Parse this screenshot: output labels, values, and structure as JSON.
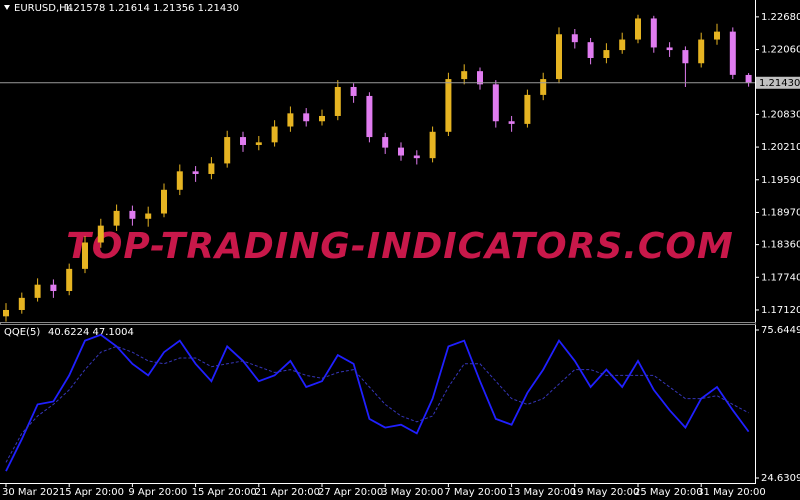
{
  "chart_data": [
    {
      "type": "candlestick",
      "title": "EURUSD,H4",
      "quote": "1.21578 1.21614 1.21356 1.21430",
      "annotation": "TOP-TRADING-INDICATORS.COM",
      "up_color": "#e6b422",
      "down_color": "#e07cf0",
      "open": [
        1.17,
        1.1712,
        1.1735,
        1.176,
        1.1748,
        1.179,
        1.184,
        1.1872,
        1.19,
        1.1885,
        1.1895,
        1.194,
        1.1975,
        1.197,
        1.199,
        1.204,
        1.2025,
        1.203,
        1.206,
        1.2085,
        1.207,
        1.208,
        1.2135,
        1.2118,
        1.204,
        1.202,
        1.2005,
        1.2,
        1.205,
        1.215,
        1.2165,
        1.214,
        1.207,
        1.2065,
        1.212,
        1.215,
        1.2235,
        1.222,
        1.219,
        1.2205,
        1.2225,
        1.2265,
        1.221,
        1.2205,
        1.218,
        1.2225,
        1.224,
        1.21578
      ],
      "high": [
        1.1725,
        1.1745,
        1.1772,
        1.177,
        1.18,
        1.1852,
        1.1885,
        1.1912,
        1.191,
        1.1908,
        1.1952,
        1.1988,
        1.1985,
        1.2002,
        1.2052,
        1.205,
        1.2042,
        1.2072,
        1.2098,
        1.2095,
        1.2092,
        1.2148,
        1.2142,
        1.2125,
        1.2048,
        1.203,
        1.2015,
        1.206,
        1.2162,
        1.2178,
        1.2172,
        1.2148,
        1.208,
        1.213,
        1.2162,
        1.2248,
        1.2245,
        1.2228,
        1.2218,
        1.2238,
        1.2272,
        1.227,
        1.222,
        1.2212,
        1.2238,
        1.2255,
        1.2248,
        1.21614
      ],
      "low": [
        1.169,
        1.1705,
        1.1728,
        1.1735,
        1.174,
        1.1782,
        1.183,
        1.1862,
        1.1872,
        1.187,
        1.1888,
        1.193,
        1.1955,
        1.196,
        1.1982,
        1.2012,
        1.2015,
        1.2022,
        1.205,
        1.206,
        1.2062,
        1.2072,
        1.2105,
        1.203,
        1.2008,
        1.1995,
        1.1988,
        1.1992,
        1.2042,
        1.214,
        1.213,
        1.2058,
        1.205,
        1.2058,
        1.211,
        1.2142,
        1.2208,
        1.2178,
        1.218,
        1.2198,
        1.2218,
        1.22,
        1.2192,
        1.2135,
        1.2172,
        1.2215,
        1.215,
        1.21356
      ],
      "close": [
        1.1712,
        1.1735,
        1.176,
        1.1748,
        1.179,
        1.184,
        1.1872,
        1.19,
        1.1885,
        1.1895,
        1.194,
        1.1975,
        1.197,
        1.199,
        1.204,
        1.2025,
        1.203,
        1.206,
        1.2085,
        1.207,
        1.208,
        1.2135,
        1.2118,
        1.204,
        1.202,
        1.2005,
        1.2,
        1.205,
        1.215,
        1.2165,
        1.214,
        1.207,
        1.2065,
        1.212,
        1.215,
        1.2235,
        1.222,
        1.219,
        1.2205,
        1.2225,
        1.2265,
        1.221,
        1.2205,
        1.218,
        1.2225,
        1.224,
        1.2158,
        1.2143
      ],
      "current_price": {
        "value": 1.2143,
        "label": "1.21430"
      },
      "ylim": [
        1.1693,
        1.23
      ],
      "yticks": [
        {
          "value": 1.2268,
          "label": "1.22680"
        },
        {
          "value": 1.2206,
          "label": "1.22060"
        },
        {
          "value": 1.2083,
          "label": "1.20830"
        },
        {
          "value": 1.2021,
          "label": "1.20210"
        },
        {
          "value": 1.1959,
          "label": "1.19590"
        },
        {
          "value": 1.1897,
          "label": "1.18970"
        },
        {
          "value": 1.1836,
          "label": "1.18360"
        },
        {
          "value": 1.1774,
          "label": "1.17740"
        },
        {
          "value": 1.1712,
          "label": "1.17120"
        }
      ]
    },
    {
      "type": "line",
      "title": "QQE(5)",
      "quote": "40.6224 47.1004",
      "categories": [
        "30 Mar 2021",
        null,
        null,
        null,
        "5 Apr 20:00",
        null,
        null,
        null,
        "9 Apr 20:00",
        null,
        null,
        null,
        "15 Apr 20:00",
        null,
        null,
        null,
        "21 Apr 20:00",
        null,
        null,
        null,
        "27 Apr 20:00",
        null,
        null,
        null,
        "3 May 20:00",
        null,
        null,
        null,
        "7 May 20:00",
        null,
        null,
        null,
        "13 May 20:00",
        null,
        null,
        null,
        "19 May 20:00",
        null,
        null,
        null,
        "25 May 20:00",
        null,
        null,
        null,
        "31 May 20:00",
        null,
        null,
        null
      ],
      "series": [
        {
          "color": "#2020ff",
          "line_style": "solid",
          "values": [
            27,
            38,
            50,
            51,
            60,
            72,
            74,
            70,
            64,
            60,
            68,
            72,
            64,
            58,
            70,
            65,
            58,
            60,
            65,
            56,
            58,
            67,
            64,
            45,
            42,
            43,
            40,
            52,
            70,
            72,
            58,
            45,
            43,
            54,
            62,
            72,
            65,
            56,
            62,
            56,
            65,
            55,
            48,
            42,
            52,
            56,
            48,
            40.6224
          ]
        },
        {
          "color": "#3535b8",
          "line_style": "dashed",
          "values": [
            30,
            40,
            46,
            50,
            55,
            62,
            68,
            70,
            68,
            65,
            64,
            66,
            66,
            63,
            64,
            65,
            63,
            61,
            62,
            60,
            59,
            61,
            62,
            56,
            50,
            46,
            44,
            46,
            56,
            64,
            64,
            58,
            52,
            50,
            52,
            57,
            62,
            62,
            60,
            60,
            60,
            60,
            56,
            52,
            52,
            53,
            50,
            47.1004
          ]
        }
      ],
      "ylim": [
        24.6309,
        75.6449
      ],
      "yticks": [
        75.6449,
        24.6309
      ]
    }
  ]
}
